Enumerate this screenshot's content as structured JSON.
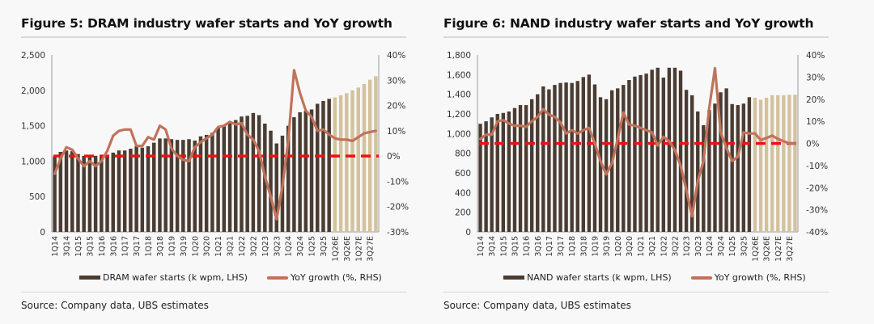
{
  "figures": [
    {
      "title": "Figure 5: DRAM industry wafer starts and YoY growth",
      "source": "Source: Company data, UBS estimates",
      "legend": {
        "bars": "DRAM wafer starts (k wpm, LHS)",
        "line": "YoY growth (%, RHS)"
      }
    },
    {
      "title": "Figure 6: NAND industry wafer starts and YoY growth",
      "source": "Source: Company data, UBS estimates",
      "legend": {
        "bars": "NAND wafer starts (k wpm, LHS)",
        "line": "YoY growth (%, RHS)"
      }
    }
  ],
  "colors": {
    "actual_bar": "#4a3c32",
    "estimate_bar": "#d3c29e",
    "yoy_line": "#c0735a",
    "zero_line": "#ee1111"
  },
  "chart_data": [
    {
      "type": "bar+line",
      "title": "Figure 5: DRAM industry wafer starts and YoY growth",
      "categories": [
        "1Q14",
        "2Q14",
        "3Q14",
        "4Q14",
        "1Q15",
        "2Q15",
        "3Q15",
        "4Q15",
        "1Q16",
        "2Q16",
        "3Q16",
        "4Q16",
        "1Q17",
        "2Q17",
        "3Q17",
        "4Q17",
        "1Q18",
        "2Q18",
        "3Q18",
        "4Q18",
        "1Q19",
        "2Q19",
        "3Q19",
        "4Q19",
        "1Q20",
        "2Q20",
        "3Q20",
        "4Q20",
        "1Q21",
        "2Q21",
        "3Q21",
        "4Q21",
        "1Q22",
        "2Q22",
        "3Q22",
        "4Q22",
        "1Q23",
        "2Q23",
        "3Q23",
        "4Q23",
        "1Q24",
        "2Q24",
        "3Q24",
        "4Q24",
        "1Q25",
        "2Q25",
        "3Q25",
        "4Q25",
        "1Q26E",
        "2Q26E",
        "3Q26E",
        "4Q26E",
        "1Q27E",
        "2Q27E",
        "3Q27E",
        "4Q27E"
      ],
      "tick_labels": [
        "1Q14",
        "3Q14",
        "1Q15",
        "3Q15",
        "1Q16",
        "3Q16",
        "1Q17",
        "3Q17",
        "1Q18",
        "3Q18",
        "1Q19",
        "3Q19",
        "1Q20",
        "3Q20",
        "1Q21",
        "3Q21",
        "1Q22",
        "3Q22",
        "1Q23",
        "3Q23",
        "1Q24",
        "3Q24",
        "1Q25",
        "3Q25",
        "1Q26E",
        "3Q26E",
        "1Q27E",
        "3Q27E"
      ],
      "estimate_start_index": 48,
      "series": [
        {
          "name": "DRAM wafer starts (k wpm, LHS)",
          "axis": "left",
          "kind": "bar",
          "values": [
            1070,
            1130,
            1150,
            1140,
            1100,
            1075,
            1075,
            1075,
            1075,
            1085,
            1120,
            1150,
            1150,
            1175,
            1210,
            1190,
            1210,
            1260,
            1320,
            1320,
            1310,
            1300,
            1300,
            1310,
            1290,
            1350,
            1370,
            1400,
            1470,
            1510,
            1550,
            1580,
            1630,
            1640,
            1680,
            1650,
            1530,
            1430,
            1250,
            1360,
            1500,
            1620,
            1690,
            1710,
            1730,
            1810,
            1850,
            1880,
            1900,
            1930,
            1960,
            2000,
            2040,
            2090,
            2150,
            2200
          ]
        },
        {
          "name": "YoY growth (%, RHS)",
          "axis": "right",
          "kind": "line",
          "values": [
            -7,
            -1,
            3.5,
            2.5,
            -1,
            -4,
            -2,
            -4,
            -2,
            2,
            8,
            10,
            10.5,
            10.5,
            4,
            4,
            7.5,
            6.5,
            12,
            10.5,
            3,
            0,
            -1.5,
            -2,
            3.5,
            5.5,
            7,
            8.5,
            11.5,
            12,
            13.5,
            12.5,
            13,
            8.5,
            6.5,
            2,
            -8,
            -16,
            -25,
            -12,
            6,
            34,
            25,
            18,
            15.5,
            10,
            10.5,
            8.5,
            7,
            6.5,
            6.5,
            6,
            7.5,
            9,
            9.5,
            10
          ]
        }
      ],
      "left_axis": {
        "ylim": [
          0,
          2500
        ],
        "ticks": [
          "0",
          "500",
          "1,000",
          "1,500",
          "2,000",
          "2,500"
        ]
      },
      "right_axis": {
        "ylim": [
          -30,
          40
        ],
        "ticks": [
          "-30%",
          "-20%",
          "-10%",
          "0%",
          "10%",
          "20%",
          "30%",
          "40%"
        ]
      },
      "reference_line": {
        "axis": "right",
        "value": 0,
        "style": "dashed"
      },
      "legend_position": "bottom"
    },
    {
      "type": "bar+line",
      "title": "Figure 6: NAND industry wafer starts and YoY growth",
      "categories": [
        "1Q14",
        "2Q14",
        "3Q14",
        "4Q14",
        "1Q15",
        "2Q15",
        "3Q15",
        "4Q15",
        "1Q16",
        "2Q16",
        "3Q16",
        "4Q16",
        "1Q17",
        "2Q17",
        "3Q17",
        "4Q17",
        "1Q18",
        "2Q18",
        "3Q18",
        "4Q18",
        "1Q19",
        "2Q19",
        "3Q19",
        "4Q19",
        "1Q20",
        "2Q20",
        "3Q20",
        "4Q20",
        "1Q21",
        "2Q21",
        "3Q21",
        "4Q21",
        "1Q22",
        "2Q22",
        "3Q22",
        "4Q22",
        "1Q23",
        "2Q23",
        "3Q23",
        "4Q23",
        "1Q24",
        "2Q24",
        "3Q24",
        "4Q24",
        "1Q25",
        "2Q25",
        "3Q25",
        "4Q25",
        "1Q26E",
        "2Q26E",
        "3Q26E",
        "4Q26E",
        "1Q27E",
        "2Q27E",
        "3Q27E",
        "4Q27E"
      ],
      "tick_labels": [
        "1Q14",
        "3Q14",
        "1Q15",
        "3Q15",
        "1Q16",
        "3Q16",
        "1Q17",
        "3Q17",
        "1Q18",
        "3Q18",
        "1Q19",
        "3Q19",
        "1Q20",
        "3Q20",
        "1Q21",
        "3Q21",
        "1Q22",
        "3Q22",
        "1Q23",
        "3Q23",
        "1Q24",
        "3Q24",
        "1Q25",
        "3Q25",
        "1Q26E",
        "3Q26E",
        "1Q27E",
        "3Q27E"
      ],
      "estimate_start_index": 48,
      "series": [
        {
          "name": "NAND wafer starts (k wpm, LHS)",
          "axis": "left",
          "kind": "bar",
          "values": [
            1100,
            1125,
            1165,
            1200,
            1210,
            1225,
            1260,
            1290,
            1290,
            1350,
            1400,
            1480,
            1450,
            1495,
            1515,
            1520,
            1515,
            1535,
            1575,
            1600,
            1500,
            1370,
            1350,
            1440,
            1460,
            1495,
            1545,
            1580,
            1595,
            1610,
            1650,
            1670,
            1570,
            1670,
            1670,
            1640,
            1445,
            1390,
            1225,
            1085,
            1240,
            1305,
            1420,
            1460,
            1300,
            1290,
            1305,
            1370,
            1365,
            1345,
            1365,
            1390,
            1390,
            1390,
            1395,
            1395
          ]
        },
        {
          "name": "YoY growth (%, RHS)",
          "axis": "right",
          "kind": "line",
          "values": [
            2,
            4,
            4,
            10,
            10.5,
            9,
            8,
            8,
            7.5,
            10,
            12,
            15.5,
            13,
            12,
            9.5,
            4.5,
            6,
            4.5,
            6,
            7,
            0,
            -8,
            -14,
            -9,
            2,
            14,
            8.5,
            8,
            7,
            6,
            5,
            -1,
            3,
            1,
            -3,
            -10,
            -21,
            -33,
            -17,
            -8,
            16,
            34,
            5,
            -2,
            -8,
            -6,
            5,
            4.5,
            4.5,
            1.5,
            2.5,
            3.5,
            2,
            1,
            0,
            0
          ]
        }
      ],
      "left_axis": {
        "ylim": [
          0,
          1800
        ],
        "ticks": [
          "0",
          "200",
          "400",
          "600",
          "800",
          "1,000",
          "1,200",
          "1,400",
          "1,600",
          "1,800"
        ]
      },
      "right_axis": {
        "ylim": [
          -40,
          40
        ],
        "ticks": [
          "-40%",
          "-30%",
          "-20%",
          "-10%",
          "0%",
          "10%",
          "20%",
          "30%",
          "40%"
        ]
      },
      "reference_line": {
        "axis": "right",
        "value": 0,
        "style": "dashed"
      },
      "legend_position": "bottom"
    }
  ]
}
